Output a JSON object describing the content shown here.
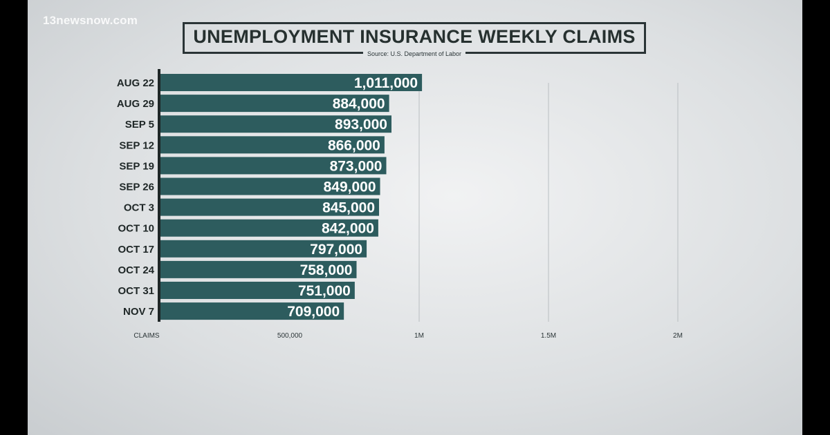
{
  "watermark": "13newsnow.com",
  "chart_data": {
    "type": "bar",
    "orientation": "horizontal",
    "title": "UNEMPLOYMENT INSURANCE WEEKLY CLAIMS",
    "source": "Source: U.S. Department of Labor",
    "xlabel": "CLAIMS",
    "categories": [
      "AUG 22",
      "AUG 29",
      "SEP 5",
      "SEP 12",
      "SEP 19",
      "SEP 26",
      "OCT 3",
      "OCT 10",
      "OCT 17",
      "OCT 24",
      "OCT 31",
      "NOV 7"
    ],
    "values": [
      1011000,
      884000,
      893000,
      866000,
      873000,
      849000,
      845000,
      842000,
      797000,
      758000,
      751000,
      709000
    ],
    "value_labels": [
      "1,011,000",
      "884,000",
      "893,000",
      "866,000",
      "873,000",
      "849,000",
      "845,000",
      "842,000",
      "797,000",
      "758,000",
      "751,000",
      "709,000"
    ],
    "xticks": [
      {
        "value": 500000,
        "label": "500,000"
      },
      {
        "value": 1000000,
        "label": "1M"
      },
      {
        "value": 1500000,
        "label": "1.5M"
      },
      {
        "value": 2000000,
        "label": "2M"
      }
    ],
    "grid": true,
    "bar_color": "#2d5c5e"
  }
}
